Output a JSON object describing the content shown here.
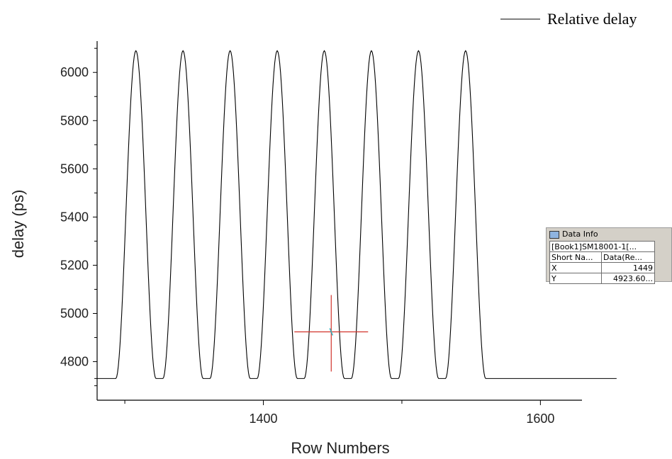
{
  "chart_data": {
    "type": "line",
    "xlabel": "Row Numbers",
    "ylabel": "delay (ps)",
    "xlim": [
      1280,
      1630
    ],
    "ylim": [
      4640,
      6130
    ],
    "xticks": [
      1400,
      1600
    ],
    "xtick_labels": [
      "1400",
      "1600"
    ],
    "yticks": [
      4800,
      5000,
      5200,
      5400,
      5600,
      5800,
      6000
    ],
    "ytick_labels": [
      "4800",
      "5000",
      "5200",
      "5400",
      "5600",
      "5800",
      "6000"
    ],
    "legend_position": "top-right",
    "series": [
      {
        "name": "Relative delay",
        "color": "#000000",
        "x": [
          1278,
          1286,
          1293.5,
          1308,
          1322.5,
          1327.5,
          1342,
          1356.5,
          1361.5,
          1376,
          1390.5,
          1395.5,
          1410,
          1424.5,
          1429.5,
          1444,
          1458.5,
          1463.5,
          1478,
          1492.5,
          1497.5,
          1512,
          1526.5,
          1531.5,
          1546,
          1560.5,
          1568,
          1655
        ],
        "y": [
          4730,
          4730,
          4730,
          6090,
          4730,
          4730,
          6090,
          4730,
          4730,
          6090,
          4730,
          4730,
          6090,
          4730,
          4730,
          6090,
          4730,
          4730,
          6090,
          4730,
          4730,
          6090,
          4730,
          4730,
          6090,
          4730,
          4730,
          4730
        ]
      }
    ],
    "crosshair": {
      "x": 1449,
      "y": 4923.6,
      "color": "#d1332b"
    }
  },
  "data_info": {
    "title": "Data Info",
    "icon": "data-info-icon",
    "source": "[Book1]SM18001-1[...",
    "header": [
      "Short Na...",
      "Data(Re..."
    ],
    "rows": [
      {
        "label": "X",
        "value": "1449"
      },
      {
        "label": "Y",
        "value": "4923.60..."
      }
    ]
  }
}
